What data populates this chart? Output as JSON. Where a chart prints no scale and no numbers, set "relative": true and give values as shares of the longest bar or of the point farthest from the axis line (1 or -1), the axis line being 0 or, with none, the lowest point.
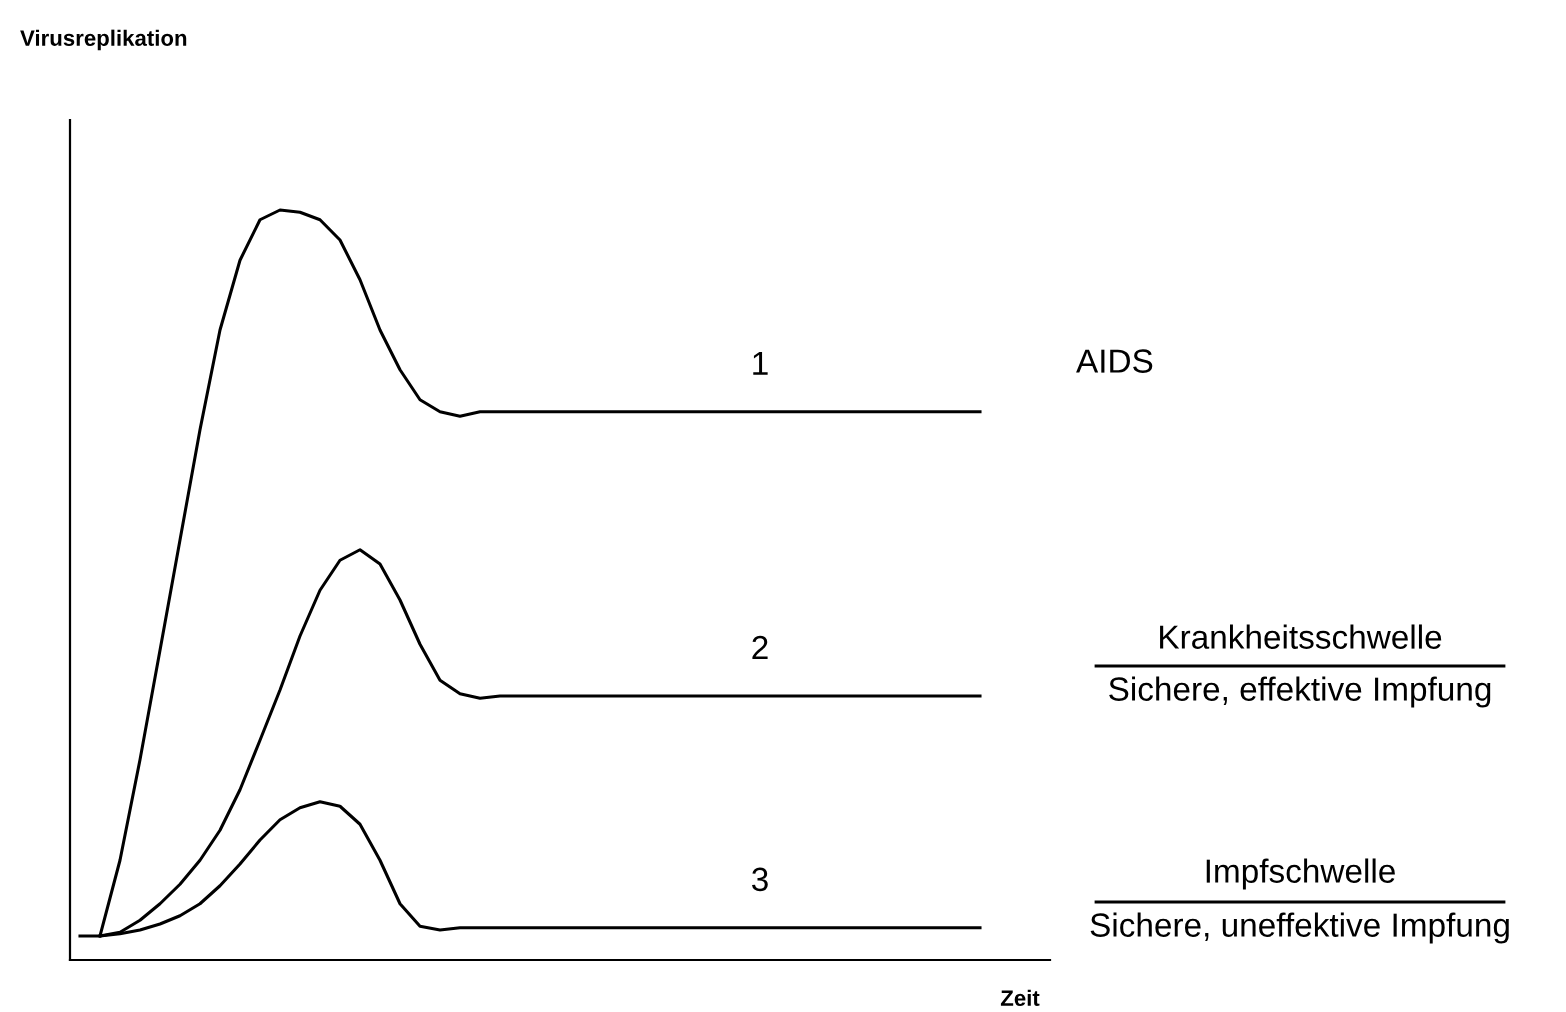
{
  "chart_data": {
    "type": "line",
    "relative": true,
    "xlabel": "Zeit",
    "legend": false,
    "marker": "none",
    "line_style": "solid",
    "categories": [
      null,
      null,
      null,
      null,
      null,
      null,
      null,
      null,
      null,
      null,
      null,
      null,
      null,
      null,
      null,
      null,
      null,
      null,
      null,
      null,
      null,
      null,
      null,
      null,
      null,
      null,
      null,
      null,
      null,
      null,
      null,
      null,
      null,
      null,
      null,
      null,
      null,
      null,
      null,
      null,
      null,
      null,
      null,
      null,
      null,
      null
    ],
    "series": [
      {
        "name": "1",
        "color": "#000000",
        "values": [
          null,
          0.032,
          0.133,
          0.267,
          0.413,
          0.56,
          0.707,
          0.84,
          0.933,
          0.987,
          1.0,
          0.997,
          0.987,
          0.96,
          0.907,
          0.84,
          0.787,
          0.747,
          0.731,
          0.725,
          0.731,
          0.731,
          0.731,
          0.731,
          0.731,
          0.731,
          0.731,
          0.731,
          0.731,
          0.731,
          0.731,
          0.731,
          0.731,
          0.731,
          0.731,
          0.731,
          0.731,
          0.731,
          0.731,
          0.731,
          0.731,
          0.731,
          0.731,
          0.731,
          0.731,
          0.731
        ]
      },
      {
        "name": "2",
        "color": "#000000",
        "values": [
          null,
          0.032,
          0.037,
          0.053,
          0.075,
          0.101,
          0.133,
          0.173,
          0.227,
          0.293,
          0.36,
          0.432,
          0.493,
          0.533,
          0.547,
          0.528,
          0.48,
          0.421,
          0.373,
          0.355,
          0.349,
          0.352,
          0.352,
          0.352,
          0.352,
          0.352,
          0.352,
          0.352,
          0.352,
          0.352,
          0.352,
          0.352,
          0.352,
          0.352,
          0.352,
          0.352,
          0.352,
          0.352,
          0.352,
          0.352,
          0.352,
          0.352,
          0.352,
          0.352,
          0.352,
          0.352
        ]
      },
      {
        "name": "3",
        "color": "#000000",
        "values": [
          0.032,
          0.032,
          0.035,
          0.04,
          0.048,
          0.059,
          0.075,
          0.099,
          0.128,
          0.16,
          0.187,
          0.203,
          0.211,
          0.205,
          0.181,
          0.133,
          0.075,
          0.045,
          0.04,
          0.043,
          0.043,
          0.043,
          0.043,
          0.043,
          0.043,
          0.043,
          0.043,
          0.043,
          0.043,
          0.043,
          0.043,
          0.043,
          0.043,
          0.043,
          0.043,
          0.043,
          0.043,
          0.043,
          0.043,
          0.043,
          0.043,
          0.043,
          0.043,
          0.043,
          0.043,
          0.043
        ]
      }
    ],
    "annotations": [
      "AIDS",
      "Krankheitsschwelle",
      "Sichere, effektive Impfung",
      "Impfschwelle",
      "Sichere, uneffektive Impfung",
      "Virusreplikation"
    ]
  }
}
